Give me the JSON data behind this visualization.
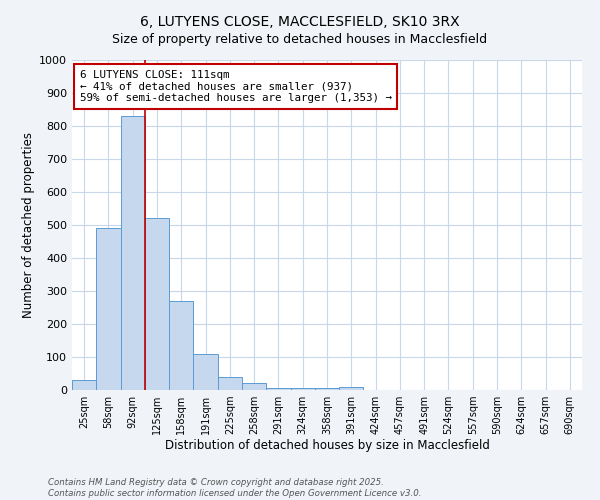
{
  "title": "6, LUTYENS CLOSE, MACCLESFIELD, SK10 3RX",
  "subtitle": "Size of property relative to detached houses in Macclesfield",
  "xlabel": "Distribution of detached houses by size in Macclesfield",
  "ylabel": "Number of detached properties",
  "categories": [
    "25sqm",
    "58sqm",
    "92sqm",
    "125sqm",
    "158sqm",
    "191sqm",
    "225sqm",
    "258sqm",
    "291sqm",
    "324sqm",
    "358sqm",
    "391sqm",
    "424sqm",
    "457sqm",
    "491sqm",
    "524sqm",
    "557sqm",
    "590sqm",
    "624sqm",
    "657sqm",
    "690sqm"
  ],
  "values": [
    30,
    490,
    830,
    520,
    270,
    108,
    38,
    20,
    5,
    5,
    5,
    8,
    0,
    0,
    0,
    0,
    0,
    0,
    0,
    0,
    0
  ],
  "bar_color": "#c5d8ed",
  "bar_edge_color": "#5b9bd5",
  "ylim": [
    0,
    1000
  ],
  "yticks": [
    0,
    100,
    200,
    300,
    400,
    500,
    600,
    700,
    800,
    900,
    1000
  ],
  "property_label": "6 LUTYENS CLOSE: 111sqm",
  "annotation_line1": "← 41% of detached houses are smaller (937)",
  "annotation_line2": "59% of semi-detached houses are larger (1,353) →",
  "vline_color": "#c00000",
  "annotation_box_edge": "#c00000",
  "footer_line1": "Contains HM Land Registry data © Crown copyright and database right 2025.",
  "footer_line2": "Contains public sector information licensed under the Open Government Licence v3.0.",
  "fig_bg_color": "#f0f4f8",
  "plot_bg_color": "#ffffff",
  "grid_color": "#c8d8e8",
  "title_fontsize": 10,
  "subtitle_fontsize": 9
}
